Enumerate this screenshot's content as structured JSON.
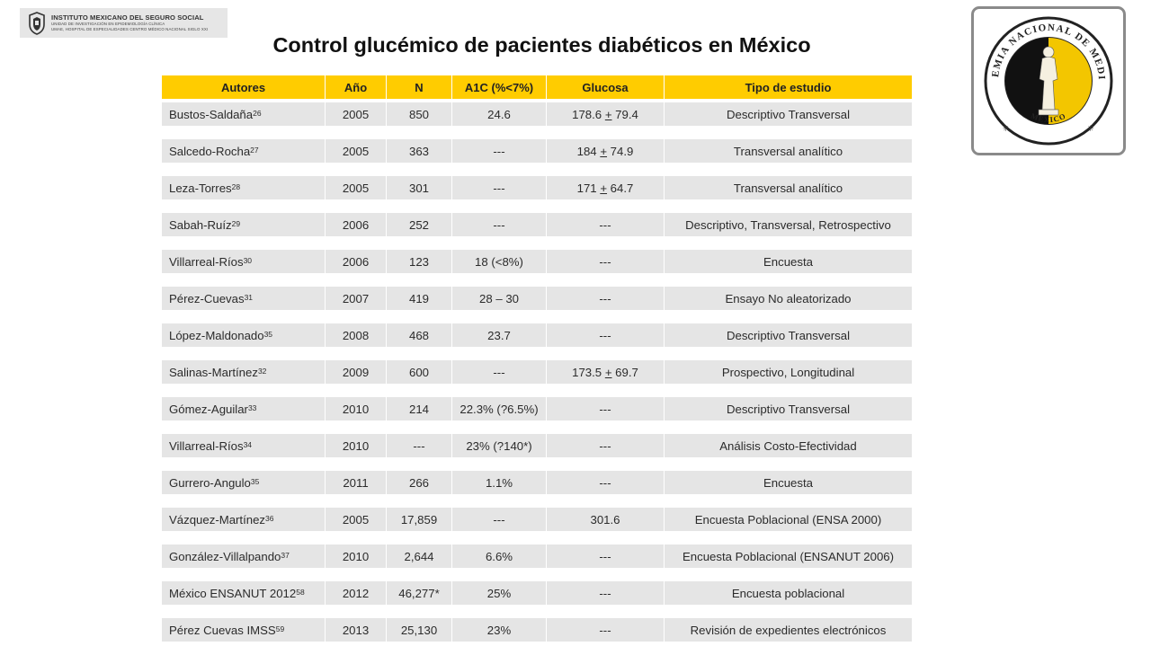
{
  "logo": {
    "line1": "INSTITUTO MEXICANO DEL SEGURO SOCIAL",
    "line2": "UNIDAD DE INVESTIGACIÓN EN EPIDEMIOLOGÍA CLÍNICA",
    "line3": "UMAE, HOSPITAL DE ESPECIALIDADES CENTRO MÉDICO NACIONAL SIGLO XXI"
  },
  "title": "Control glucémico de pacientes diabéticos en México",
  "seal": {
    "text": "ACADEMIA NACIONAL DE MEDICINA",
    "bottom": "MÉXICO",
    "colors": {
      "gold": "#f3c600",
      "black": "#111111",
      "ring": "#ffffff"
    }
  },
  "table": {
    "header": {
      "autores": "Autores",
      "ano": "Año",
      "n": "N",
      "a1c": "A1C (%<7%)",
      "glucosa": "Glucosa",
      "tipo": "Tipo de estudio"
    },
    "rows": [
      {
        "autor": "Bustos-Saldaña",
        "ref": "26",
        "ano": "2005",
        "n": "850",
        "a1c": "24.6",
        "gluc_a": "178.6 ",
        "gluc_pm": "+",
        "gluc_b": " 79.4",
        "tipo": "Descriptivo Transversal"
      },
      {
        "autor": "Salcedo-Rocha",
        "ref": "27",
        "ano": "2005",
        "n": "363",
        "a1c": "---",
        "gluc_a": "184 ",
        "gluc_pm": "+",
        "gluc_b": " 74.9",
        "tipo": "Transversal analítico"
      },
      {
        "autor": "Leza-Torres",
        "ref": "28",
        "ano": "2005",
        "n": "301",
        "a1c": "---",
        "gluc_a": "171 ",
        "gluc_pm": "+",
        "gluc_b": " 64.7",
        "tipo": "Transversal analítico"
      },
      {
        "autor": "Sabah-Ruíz",
        "ref": "29",
        "ano": "2006",
        "n": "252",
        "a1c": "---",
        "gluc_a": "---",
        "gluc_pm": "",
        "gluc_b": "",
        "tipo": "Descriptivo, Transversal, Retrospectivo"
      },
      {
        "autor": "Villarreal-Ríos",
        "ref": "30",
        "ano": "2006",
        "n": "123",
        "a1c": "18 (<8%)",
        "gluc_a": "---",
        "gluc_pm": "",
        "gluc_b": "",
        "tipo": "Encuesta"
      },
      {
        "autor": "Pérez-Cuevas",
        "ref": "31",
        "ano": "2007",
        "n": "419",
        "a1c": "28 – 30",
        "gluc_a": "---",
        "gluc_pm": "",
        "gluc_b": "",
        "tipo": "Ensayo  No aleatorizado"
      },
      {
        "autor": "López-Maldonado",
        "ref": "35",
        "ano": "2008",
        "n": "468",
        "a1c": "23.7",
        "gluc_a": "---",
        "gluc_pm": "",
        "gluc_b": "",
        "tipo": "Descriptivo Transversal"
      },
      {
        "autor": "Salinas-Martínez",
        "ref": "32",
        "ano": "2009",
        "n": "600",
        "a1c": "---",
        "gluc_a": "173.5 ",
        "gluc_pm": "+",
        "gluc_b": " 69.7",
        "tipo": "Prospectivo, Longitudinal"
      },
      {
        "autor": "Gómez-Aguilar",
        "ref": "33",
        "ano": "2010",
        "n": "214",
        "a1c": "22.3% (?6.5%)",
        "gluc_a": "---",
        "gluc_pm": "",
        "gluc_b": "",
        "tipo": "Descriptivo Transversal"
      },
      {
        "autor": "Villarreal-Ríos",
        "ref": "34",
        "ano": "2010",
        "n": "---",
        "a1c": "23% (?140*)",
        "gluc_a": "---",
        "gluc_pm": "",
        "gluc_b": "",
        "tipo": "Análisis Costo-Efectividad"
      },
      {
        "autor": "Gurrero-Angulo",
        "ref": "35",
        "ano": "2011",
        "n": "266",
        "a1c": "1.1%",
        "gluc_a": "---",
        "gluc_pm": "",
        "gluc_b": "",
        "tipo": "Encuesta"
      },
      {
        "autor": "Vázquez-Martínez",
        "ref": "36",
        "ano": "2005",
        "n": "17,859",
        "a1c": "---",
        "gluc_a": "301.6",
        "gluc_pm": "",
        "gluc_b": "",
        "tipo": "Encuesta Poblacional (ENSA 2000)"
      },
      {
        "autor": "González-Villalpando",
        "ref": "37",
        "ano": "2010",
        "n": "2,644",
        "a1c": "6.6%",
        "gluc_a": "---",
        "gluc_pm": "",
        "gluc_b": "",
        "tipo": "Encuesta Poblacional (ENSANUT 2006)"
      },
      {
        "autor": "México ENSANUT 2012",
        "ref": "58",
        "ano": "2012",
        "n": "46,277*",
        "a1c": "25%",
        "gluc_a": "---",
        "gluc_pm": "",
        "gluc_b": "",
        "tipo": "Encuesta poblacional"
      },
      {
        "autor": "Pérez Cuevas IMSS",
        "ref": "59",
        "ano": "2013",
        "n": "25,130",
        "a1c": "23%",
        "gluc_a": "---",
        "gluc_pm": "",
        "gluc_b": "",
        "tipo": "Revisión de expedientes electrónicos"
      }
    ]
  }
}
